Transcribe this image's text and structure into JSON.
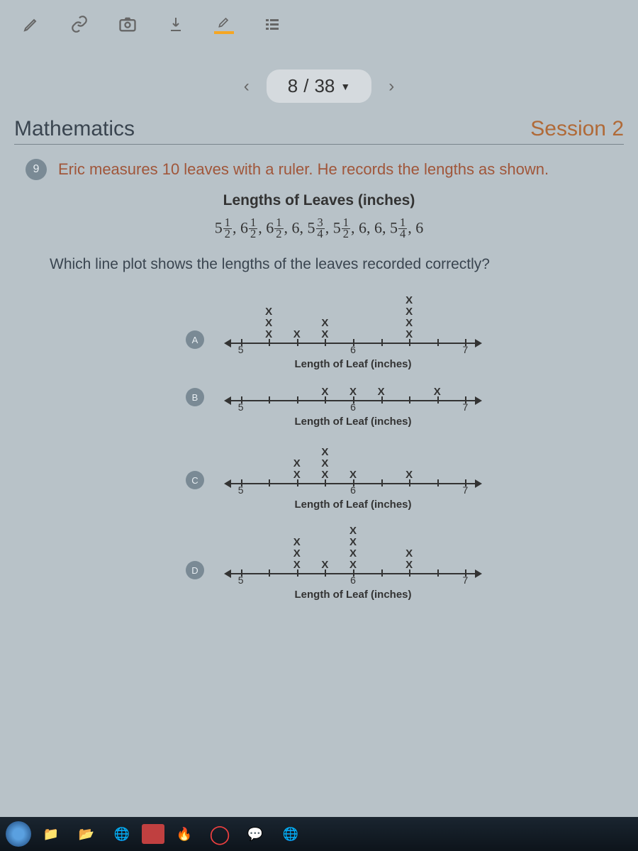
{
  "pager": {
    "current": "8",
    "total": "38"
  },
  "header": {
    "subject": "Mathematics",
    "session": "Session 2"
  },
  "question": {
    "number": "9",
    "intro": "Eric measures 10 leaves with a ruler. He records the lengths as shown.",
    "data_title": "Lengths of Leaves (inches)",
    "values_raw": [
      "5 1/2",
      "6 1/2",
      "6 1/2",
      "6",
      "5 3/4",
      "5 1/2",
      "6",
      "6",
      "5 1/4",
      "6"
    ],
    "prompt": "Which line plot shows the lengths of the leaves recorded correctly?",
    "axis_label": "Length of Leaf (inches)",
    "axis": {
      "min": 5,
      "max": 7,
      "step_quarters": 1,
      "major_labels": {
        "5": "5",
        "6": "6",
        "7": "7"
      }
    },
    "plots": [
      {
        "choice": "A",
        "marks_area_h": 70,
        "data": {
          "5": 0,
          "5.25": 3,
          "5.5": 1,
          "5.75": 2,
          "6": 0,
          "6.25": 0,
          "6.5": 4,
          "6.75": 0,
          "7": 0
        }
      },
      {
        "choice": "B",
        "marks_area_h": 24,
        "data": {
          "5": 0,
          "5.25": 0,
          "5.5": 0,
          "5.75": 1,
          "6": 1,
          "6.25": 1,
          "6.5": 0,
          "6.75": 1,
          "7": 0
        }
      },
      {
        "choice": "C",
        "marks_area_h": 60,
        "data": {
          "5": 0,
          "5.25": 0,
          "5.5": 2,
          "5.75": 3,
          "6": 1,
          "6.25": 0,
          "6.5": 1,
          "6.75": 0,
          "7": 0
        }
      },
      {
        "choice": "D",
        "marks_area_h": 70,
        "data": {
          "5": 0,
          "5.25": 0,
          "5.5": 3,
          "5.75": 1,
          "6": 4,
          "6.25": 0,
          "6.5": 2,
          "6.75": 0,
          "7": 0
        }
      }
    ]
  },
  "colors": {
    "page_bg": "#b8c2c8",
    "question_intro": "#a0563a",
    "session": "#b06a38",
    "text": "#3a4550"
  }
}
